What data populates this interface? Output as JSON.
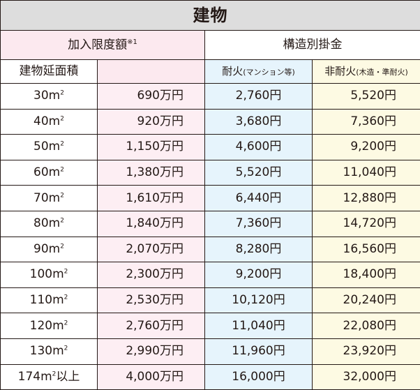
{
  "title": "建物",
  "headers": {
    "limit": "加入限度額",
    "limit_note": "※1",
    "structure": "構造別掛金",
    "area": "建物延面積",
    "fire_resistant_main": "耐火",
    "fire_resistant_sub": "(マンション等)",
    "non_fire_resistant_main": "非耐火",
    "non_fire_resistant_sub": "(木造・準耐火)"
  },
  "rows": [
    {
      "area": "30m",
      "area_sup": "2",
      "area_suffix": "",
      "limit": "690万円",
      "fire": "2,760円",
      "nonfire": "5,520円"
    },
    {
      "area": "40m",
      "area_sup": "2",
      "area_suffix": "",
      "limit": "920万円",
      "fire": "3,680円",
      "nonfire": "7,360円"
    },
    {
      "area": "50m",
      "area_sup": "2",
      "area_suffix": "",
      "limit": "1,150万円",
      "fire": "4,600円",
      "nonfire": "9,200円"
    },
    {
      "area": "60m",
      "area_sup": "2",
      "area_suffix": "",
      "limit": "1,380万円",
      "fire": "5,520円",
      "nonfire": "11,040円"
    },
    {
      "area": "70m",
      "area_sup": "2",
      "area_suffix": "",
      "limit": "1,610万円",
      "fire": "6,440円",
      "nonfire": "12,880円"
    },
    {
      "area": "80m",
      "area_sup": "2",
      "area_suffix": "",
      "limit": "1,840万円",
      "fire": "7,360円",
      "nonfire": "14,720円"
    },
    {
      "area": "90m",
      "area_sup": "2",
      "area_suffix": "",
      "limit": "2,070万円",
      "fire": "8,280円",
      "nonfire": "16,560円"
    },
    {
      "area": "100m",
      "area_sup": "2",
      "area_suffix": "",
      "limit": "2,300万円",
      "fire": "9,200円",
      "nonfire": "18,400円"
    },
    {
      "area": "110m",
      "area_sup": "2",
      "area_suffix": "",
      "limit": "2,530万円",
      "fire": "10,120円",
      "nonfire": "20,240円"
    },
    {
      "area": "120m",
      "area_sup": "2",
      "area_suffix": "",
      "limit": "2,760万円",
      "fire": "11,040円",
      "nonfire": "22,080円"
    },
    {
      "area": "130m",
      "area_sup": "2",
      "area_suffix": "",
      "limit": "2,990万円",
      "fire": "11,960円",
      "nonfire": "23,920円"
    },
    {
      "area": "174m",
      "area_sup": "2",
      "area_suffix": "以上",
      "limit": "4,000万円",
      "fire": "16,000円",
      "nonfire": "32,000円"
    }
  ],
  "colors": {
    "title_bg": "#dddddd",
    "limit_bg": "#fdeef3",
    "fire_bg": "#e6f4fc",
    "nonfire_bg": "#fdfae3",
    "border": "#231815"
  }
}
